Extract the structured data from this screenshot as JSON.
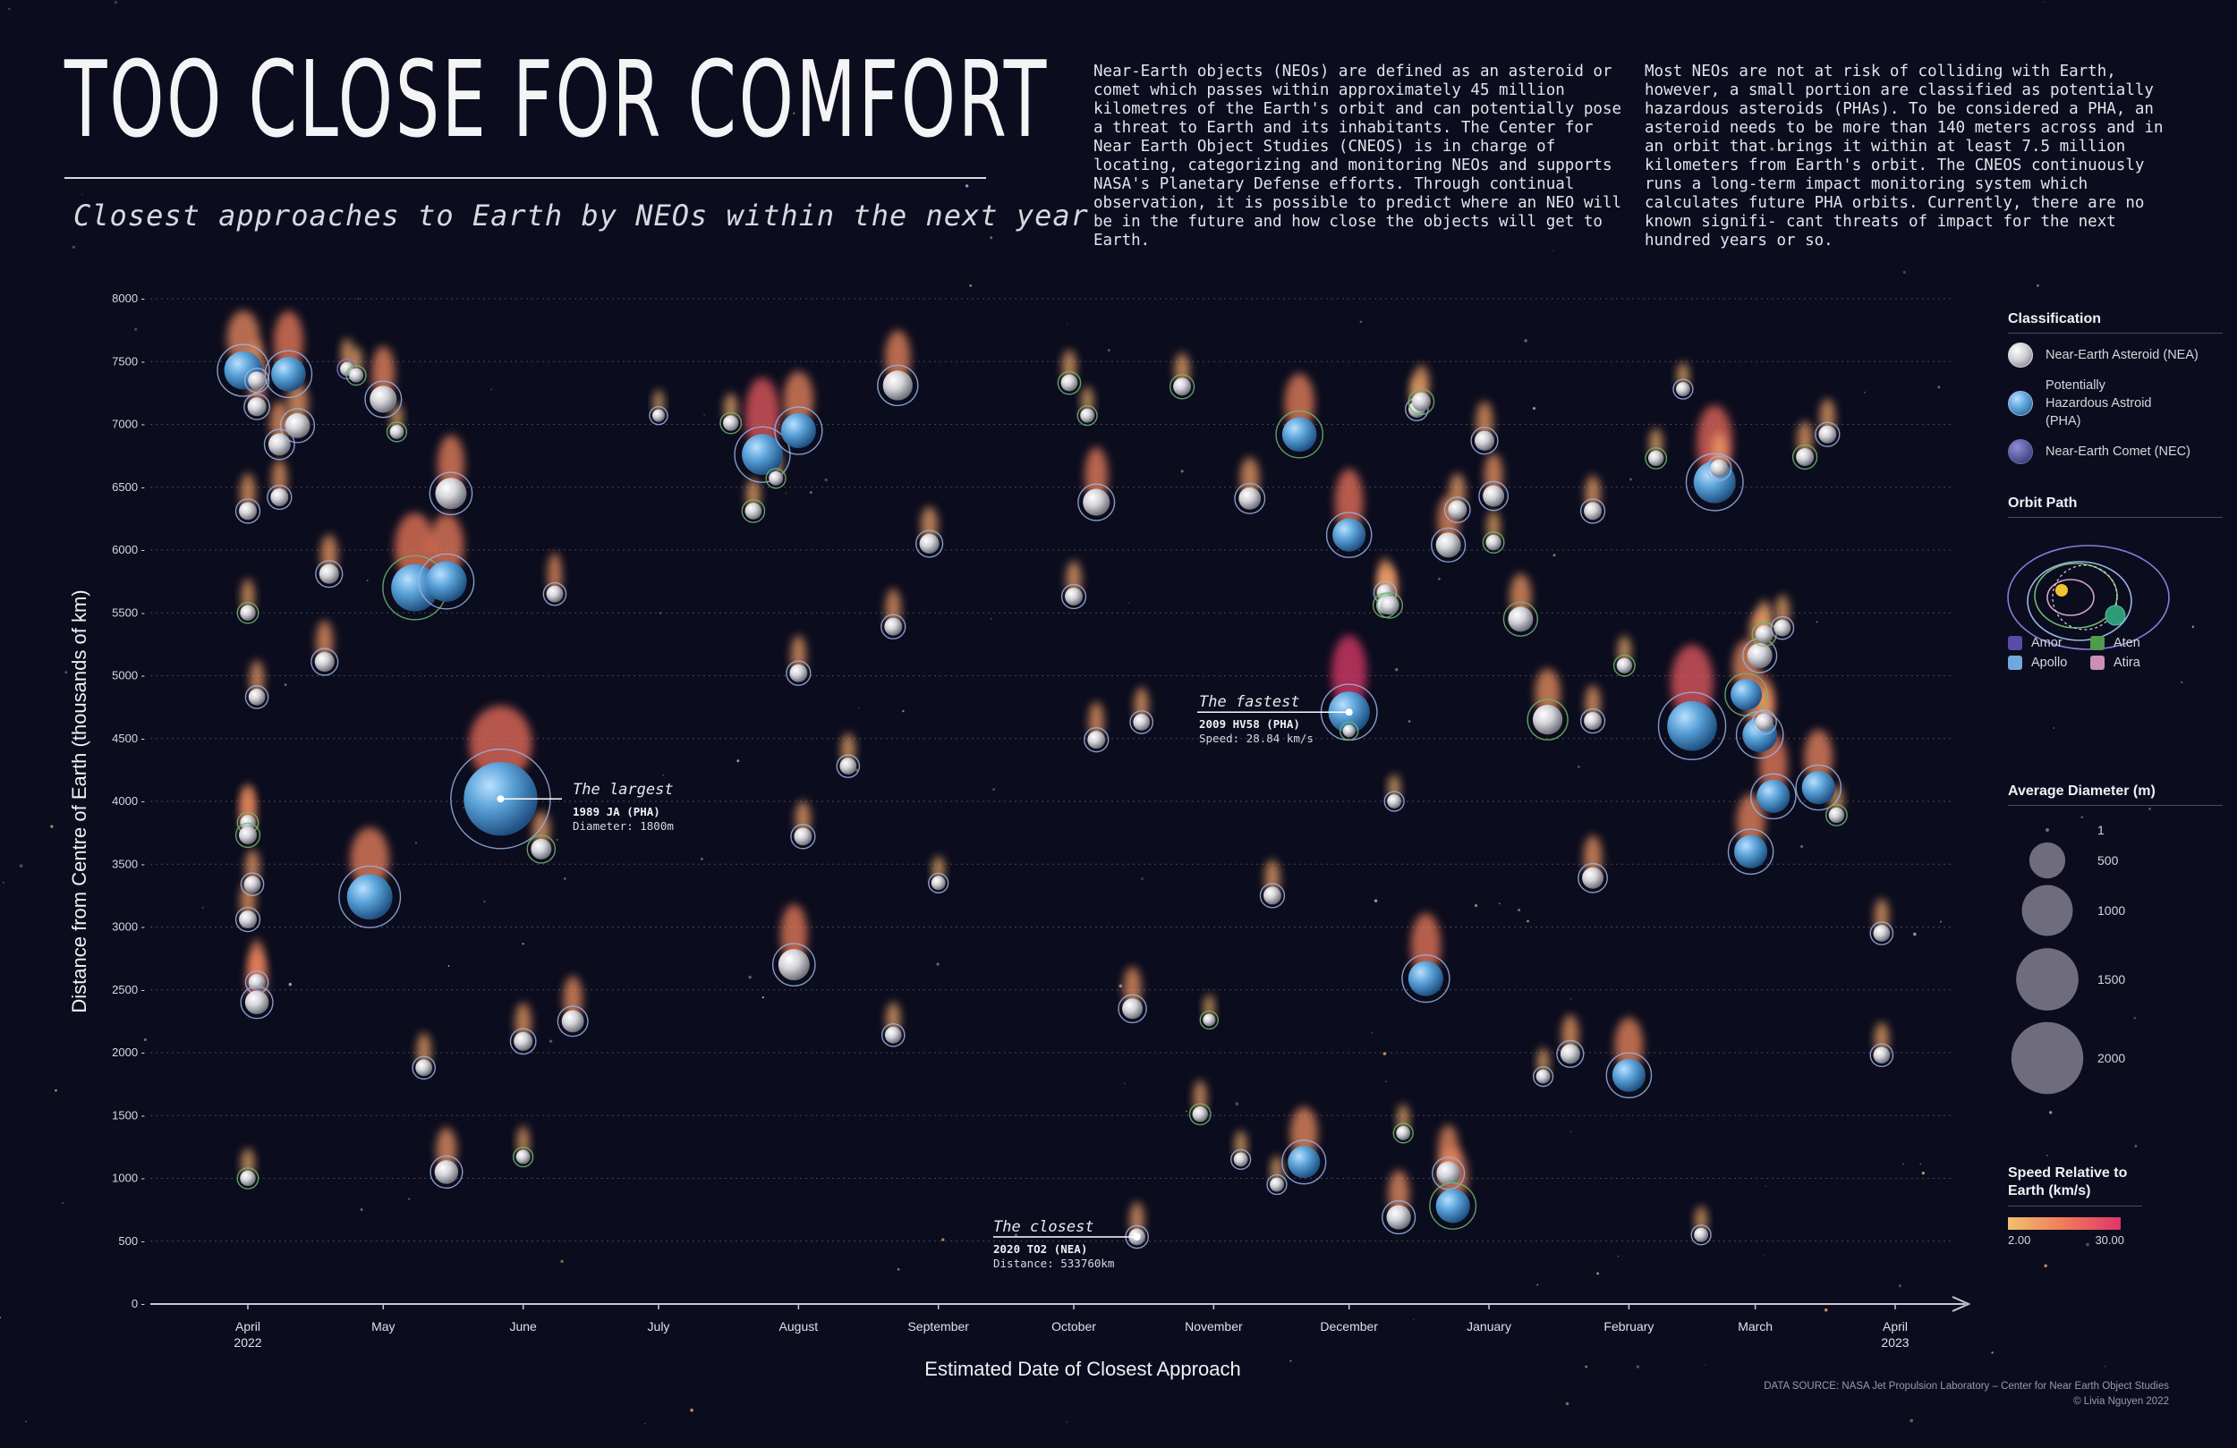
{
  "header": {
    "title": "TOO CLOSE FOR COMFORT",
    "subtitle": "Closest approaches to Earth by NEOs within the next year",
    "intro_1": "Near-Earth objects (NEOs) are defined as an asteroid or comet which passes within approximately 45 million kilometres of the Earth's orbit and can potentially pose a threat to Earth and its inhabitants. The Center for Near Earth Object Studies (CNEOS) is in charge of locating, categorizing and monitoring NEOs and supports NASA's Planetary Defense efforts. Through continual observation, it is possible to predict where an NEO will be in the future and how close the objects will get to Earth.",
    "intro_2": "Most NEOs are not at risk of colliding with Earth, however, a small portion are classified as potentially hazardous asteroids (PHAs). To be considered a PHA, an asteroid needs to be more than 140 meters across and in an orbit that brings it within at least 7.5 million kilometers from Earth's orbit. The CNEOS continuously runs a long-term impact monitoring system which calculates future PHA orbits. Currently, there are no known signifi- cant threats of impact for the next hundred years or so."
  },
  "colors": {
    "background": "#0b0c1d",
    "nea": "#d4d4da",
    "pha": "#5aa2d8",
    "nec": "#4a4a96",
    "amor": "#5b4aa8",
    "apollo": "#6fa8dc",
    "aten": "#4f9a4f",
    "atira": "#c98fb5",
    "speed_low": "#f0c070",
    "speed_high": "#e0356a"
  },
  "chart_data": {
    "type": "scatter",
    "xlabel": "Estimated Date of Closest Approach",
    "ylabel": "Distance from Centre of Earth (thousands of km)",
    "ylim": [
      0,
      8000
    ],
    "yticks": [
      0,
      500,
      1000,
      1500,
      2000,
      2500,
      3000,
      3500,
      4000,
      4500,
      5000,
      5500,
      6000,
      6500,
      7000,
      7500,
      8000
    ],
    "xlim": [
      "2022-03-28",
      "2023-04-10"
    ],
    "xticks": [
      {
        "date": "2022-04-01",
        "label": "April",
        "sub": "2022"
      },
      {
        "date": "2022-05-01",
        "label": "May",
        "sub": ""
      },
      {
        "date": "2022-06-01",
        "label": "June",
        "sub": ""
      },
      {
        "date": "2022-07-01",
        "label": "July",
        "sub": ""
      },
      {
        "date": "2022-08-01",
        "label": "August",
        "sub": ""
      },
      {
        "date": "2022-09-01",
        "label": "September",
        "sub": ""
      },
      {
        "date": "2022-10-01",
        "label": "October",
        "sub": ""
      },
      {
        "date": "2022-11-01",
        "label": "November",
        "sub": ""
      },
      {
        "date": "2022-12-01",
        "label": "December",
        "sub": ""
      },
      {
        "date": "2023-01-01",
        "label": "January",
        "sub": ""
      },
      {
        "date": "2023-02-01",
        "label": "February",
        "sub": ""
      },
      {
        "date": "2023-03-01",
        "label": "March",
        "sub": ""
      },
      {
        "date": "2023-04-01",
        "label": "April",
        "sub": "2023"
      }
    ],
    "grid": true,
    "point_fields": [
      "date",
      "distance_thousand_km",
      "diameter_m",
      "class",
      "orbit",
      "speed_km_s"
    ],
    "points": [
      [
        "2022-03-31",
        7430,
        420,
        "PHA",
        "Apollo",
        12
      ],
      [
        "2022-04-01",
        6310,
        60,
        "NEA",
        "Apollo",
        9
      ],
      [
        "2022-04-01",
        5500,
        40,
        "NEA",
        "Aten",
        8
      ],
      [
        "2022-04-01",
        3830,
        40,
        "NEA",
        "Aten",
        10
      ],
      [
        "2022-04-01",
        3730,
        60,
        "NEA",
        "Aten",
        14
      ],
      [
        "2022-04-01",
        3060,
        60,
        "NEA",
        "Apollo",
        9
      ],
      [
        "2022-04-02",
        3340,
        50,
        "NEA",
        "Apollo",
        8
      ],
      [
        "2022-04-01",
        1000,
        40,
        "NEA",
        "Aten",
        6
      ],
      [
        "2022-04-03",
        7350,
        60,
        "NEA",
        "Apollo",
        10
      ],
      [
        "2022-04-03",
        7140,
        70,
        "NEA",
        "Apollo",
        11
      ],
      [
        "2022-04-03",
        4830,
        50,
        "NEA",
        "Apollo",
        9
      ],
      [
        "2022-04-03",
        2560,
        50,
        "NEA",
        "Apollo",
        12
      ],
      [
        "2022-04-03",
        2400,
        130,
        "NEA",
        "Apollo",
        14
      ],
      [
        "2022-04-08",
        6840,
        110,
        "NEA",
        "Apollo",
        10
      ],
      [
        "2022-04-08",
        6420,
        60,
        "NEA",
        "Apollo",
        9
      ],
      [
        "2022-04-10",
        7400,
        330,
        "PHA",
        "Apollo",
        15
      ],
      [
        "2022-04-12",
        6990,
        150,
        "NEA",
        "Apollo",
        9
      ],
      [
        "2022-04-18",
        5110,
        80,
        "NEA",
        "Apollo",
        10
      ],
      [
        "2022-04-19",
        5810,
        80,
        "NEA",
        "Apollo",
        9
      ],
      [
        "2022-04-23",
        7440,
        30,
        "NEA",
        "Amor",
        7
      ],
      [
        "2022-04-25",
        7390,
        30,
        "NEA",
        "Aten",
        6
      ],
      [
        "2022-04-28",
        3240,
        620,
        "PHA",
        "Apollo",
        14
      ],
      [
        "2022-05-01",
        7200,
        180,
        "NEA",
        "Apollo",
        13
      ],
      [
        "2022-05-04",
        6940,
        30,
        "NEA",
        "Aten",
        6
      ],
      [
        "2022-05-10",
        1880,
        50,
        "NEA",
        "Apollo",
        8
      ],
      [
        "2022-05-08",
        5700,
        680,
        "PHA",
        "Aten",
        16
      ],
      [
        "2022-05-15",
        5750,
        480,
        "PHA",
        "Apollo",
        15
      ],
      [
        "2022-05-16",
        6450,
        260,
        "NEA",
        "Apollo",
        14
      ],
      [
        "2022-05-15",
        1050,
        130,
        "NEA",
        "Apollo",
        10
      ],
      [
        "2022-05-27",
        4020,
        1800,
        "PHA",
        "Apollo",
        18
      ],
      [
        "2022-06-01",
        1170,
        30,
        "NEA",
        "Aten",
        7
      ],
      [
        "2022-06-01",
        2090,
        70,
        "NEA",
        "Apollo",
        9
      ],
      [
        "2022-06-05",
        3620,
        90,
        "NEA",
        "Aten",
        8
      ],
      [
        "2022-06-08",
        5650,
        50,
        "NEA",
        "Apollo",
        11
      ],
      [
        "2022-06-12",
        2250,
        110,
        "NEA",
        "Apollo",
        11
      ],
      [
        "2022-07-01",
        7070,
        20,
        "NEA",
        "Apollo",
        5
      ],
      [
        "2022-07-17",
        7010,
        40,
        "NEA",
        "Aten",
        6
      ],
      [
        "2022-07-22",
        6310,
        50,
        "NEA",
        "Aten",
        7
      ],
      [
        "2022-07-24",
        6760,
        490,
        "PHA",
        "Apollo",
        22
      ],
      [
        "2022-07-27",
        6570,
        30,
        "NEA",
        "Aten",
        6
      ],
      [
        "2022-07-31",
        2700,
        260,
        "NEA",
        "Apollo",
        15
      ],
      [
        "2022-08-01",
        6950,
        340,
        "PHA",
        "Apollo",
        13
      ],
      [
        "2022-08-01",
        5020,
        60,
        "NEA",
        "Apollo",
        9
      ],
      [
        "2022-08-02",
        3720,
        60,
        "NEA",
        "Apollo",
        8
      ],
      [
        "2022-08-12",
        4280,
        50,
        "NEA",
        "Apollo",
        7
      ],
      [
        "2022-08-23",
        7310,
        230,
        "NEA",
        "Apollo",
        13
      ],
      [
        "2022-08-22",
        5390,
        60,
        "NEA",
        "Apollo",
        9
      ],
      [
        "2022-08-22",
        2140,
        50,
        "NEA",
        "Apollo",
        7
      ],
      [
        "2022-08-30",
        6050,
        80,
        "NEA",
        "Apollo",
        8
      ],
      [
        "2022-09-01",
        3350,
        30,
        "NEA",
        "Apollo",
        5
      ],
      [
        "2022-09-30",
        7330,
        50,
        "NEA",
        "Aten",
        7
      ],
      [
        "2022-10-01",
        5630,
        60,
        "NEA",
        "Apollo",
        8
      ],
      [
        "2022-10-04",
        7070,
        30,
        "NEA",
        "Aten",
        6
      ],
      [
        "2022-10-06",
        6380,
        180,
        "NEA",
        "Apollo",
        14
      ],
      [
        "2022-10-06",
        4490,
        60,
        "NEA",
        "Apollo",
        9
      ],
      [
        "2022-10-14",
        2350,
        90,
        "NEA",
        "Apollo",
        10
      ],
      [
        "2022-10-15",
        534,
        50,
        "NEA",
        "Apollo",
        8
      ],
      [
        "2022-10-16",
        4630,
        50,
        "NEA",
        "Apollo",
        8
      ],
      [
        "2022-10-25",
        7300,
        60,
        "NEA",
        "Aten",
        7
      ],
      [
        "2022-10-29",
        1510,
        40,
        "NEA",
        "Aten",
        8
      ],
      [
        "2022-10-31",
        2260,
        20,
        "NEA",
        "Aten",
        5
      ],
      [
        "2022-11-07",
        1150,
        30,
        "NEA",
        "Apollo",
        6
      ],
      [
        "2022-11-09",
        6410,
        110,
        "NEA",
        "Apollo",
        9
      ],
      [
        "2022-11-14",
        3250,
        60,
        "NEA",
        "Apollo",
        8
      ],
      [
        "2022-11-15",
        950,
        30,
        "NEA",
        "Apollo",
        6
      ],
      [
        "2022-11-20",
        6920,
        330,
        "PHA",
        "Aten",
        14
      ],
      [
        "2022-11-21",
        1130,
        280,
        "PHA",
        "Apollo",
        12
      ],
      [
        "2022-12-01",
        6120,
        300,
        "PHA",
        "Apollo",
        17
      ],
      [
        "2022-12-01",
        4710,
        500,
        "PHA",
        "Apollo",
        28.84
      ],
      [
        "2022-12-01",
        4560,
        20,
        "NEA",
        "Aten",
        5
      ],
      [
        "2022-12-09",
        5660,
        50,
        "NEA",
        "Apollo",
        8
      ],
      [
        "2022-12-09",
        5560,
        60,
        "NEA",
        "Aten",
        9
      ],
      [
        "2022-12-10",
        5560,
        70,
        "NEA",
        "Aten",
        9
      ],
      [
        "2022-12-11",
        4000,
        30,
        "NEA",
        "Apollo",
        5
      ],
      [
        "2022-12-12",
        690,
        140,
        "NEA",
        "Apollo",
        11
      ],
      [
        "2022-12-13",
        1360,
        30,
        "NEA",
        "Aten",
        6
      ],
      [
        "2022-12-16",
        7120,
        50,
        "NEA",
        "Apollo",
        7
      ],
      [
        "2022-12-17",
        7180,
        70,
        "NEA",
        "Aten",
        8
      ],
      [
        "2022-12-18",
        2590,
        340,
        "PHA",
        "Apollo",
        16
      ],
      [
        "2022-12-23",
        1040,
        130,
        "NEA",
        "Apollo",
        12
      ],
      [
        "2022-12-24",
        780,
        320,
        "PHA",
        "Aten",
        13
      ],
      [
        "2022-12-23",
        6040,
        150,
        "NEA",
        "Apollo",
        12
      ],
      [
        "2022-12-25",
        6320,
        70,
        "NEA",
        "Apollo",
        8
      ],
      [
        "2022-12-31",
        6870,
        80,
        "NEA",
        "Apollo",
        9
      ],
      [
        "2023-01-02",
        6430,
        100,
        "NEA",
        "Apollo",
        10
      ],
      [
        "2023-01-02",
        6060,
        40,
        "NEA",
        "Aten",
        7
      ],
      [
        "2023-01-08",
        5450,
        150,
        "NEA",
        "Aten",
        10
      ],
      [
        "2023-01-13",
        1810,
        30,
        "NEA",
        "Apollo",
        6
      ],
      [
        "2023-01-14",
        4650,
        230,
        "NEA",
        "Aten",
        11
      ],
      [
        "2023-01-19",
        1990,
        80,
        "NEA",
        "Apollo",
        9
      ],
      [
        "2023-01-24",
        6310,
        60,
        "NEA",
        "Apollo",
        8
      ],
      [
        "2023-01-24",
        4640,
        60,
        "NEA",
        "Apollo",
        8
      ],
      [
        "2023-01-24",
        3390,
        100,
        "NEA",
        "Apollo",
        10
      ],
      [
        "2023-01-31",
        5080,
        40,
        "NEA",
        "Aten",
        6
      ],
      [
        "2023-02-01",
        1820,
        300,
        "PHA",
        "Apollo",
        13
      ],
      [
        "2023-02-07",
        6730,
        40,
        "NEA",
        "Aten",
        6
      ],
      [
        "2023-02-13",
        7280,
        30,
        "NEA",
        "Apollo",
        5
      ],
      [
        "2023-02-15",
        4600,
        760,
        "PHA",
        "Apollo",
        22
      ],
      [
        "2023-02-17",
        550,
        30,
        "NEA",
        "Apollo",
        6
      ],
      [
        "2023-02-20",
        6540,
        520,
        "PHA",
        "Apollo",
        19
      ],
      [
        "2023-02-21",
        6650,
        60,
        "NEA",
        "Apollo",
        8
      ],
      [
        "2023-02-27",
        4850,
        260,
        "PHA",
        "Aten",
        12
      ],
      [
        "2023-02-28",
        3600,
        300,
        "PHA",
        "Apollo",
        13
      ],
      [
        "2023-03-02",
        5160,
        150,
        "NEA",
        "Apollo",
        10
      ],
      [
        "2023-03-02",
        4530,
        330,
        "PHA",
        "Apollo",
        14
      ],
      [
        "2023-03-03",
        4630,
        60,
        "NEA",
        "Apollo",
        8
      ],
      [
        "2023-03-03",
        5330,
        60,
        "NEA",
        "Aten",
        7
      ],
      [
        "2023-03-05",
        4040,
        300,
        "PHA",
        "Apollo",
        15
      ],
      [
        "2023-03-07",
        5380,
        50,
        "NEA",
        "Apollo",
        7
      ],
      [
        "2023-03-12",
        6740,
        60,
        "NEA",
        "Aten",
        8
      ],
      [
        "2023-03-15",
        4110,
        300,
        "PHA",
        "Apollo",
        13
      ],
      [
        "2023-03-17",
        6920,
        60,
        "NEA",
        "Apollo",
        8
      ],
      [
        "2023-03-19",
        3890,
        40,
        "NEA",
        "Aten",
        6
      ],
      [
        "2023-03-29",
        2950,
        50,
        "NEA",
        "Apollo",
        8
      ],
      [
        "2023-03-29",
        1980,
        50,
        "NEA",
        "Apollo",
        7
      ]
    ],
    "annotations": [
      {
        "title": "The largest",
        "line1": "1989 JA (PHA)",
        "line2": "Diameter: 1800m"
      },
      {
        "title": "The fastest",
        "line1": "2009 HV58 (PHA)",
        "line2": "Speed: 28.84 km/s"
      },
      {
        "title": "The closest",
        "line1": "2020 TO2 (NEA)",
        "line2": "Distance: 533760km"
      }
    ]
  },
  "legend": {
    "classification": {
      "heading": "Classification",
      "items": [
        {
          "label": "Near-Earth Asteroid (NEA)"
        },
        {
          "label": "Potentially Hazardous Astroid (PHA)"
        },
        {
          "label": "Near-Earth Comet (NEC)"
        }
      ]
    },
    "orbit_path": {
      "heading": "Orbit Path",
      "items": [
        {
          "label": "Amor"
        },
        {
          "label": "Aten"
        },
        {
          "label": "Apollo"
        },
        {
          "label": "Atira"
        }
      ]
    },
    "diameter": {
      "heading": "Average Diameter (m)",
      "items": [
        {
          "label": "1",
          "value": 1
        },
        {
          "label": "500",
          "value": 500
        },
        {
          "label": "1000",
          "value": 1000
        },
        {
          "label": "1500",
          "value": 1500
        },
        {
          "label": "2000",
          "value": 2000
        }
      ]
    },
    "speed": {
      "heading": "Speed Relative to Earth (km/s)",
      "min_label": "2.00",
      "max_label": "30.00"
    }
  },
  "footer": {
    "source": "DATA SOURCE: NASA Jet Propulsion Laboratory – Center for Near Earth Object Studies",
    "credit": "© Livia Nguyen 2022"
  }
}
